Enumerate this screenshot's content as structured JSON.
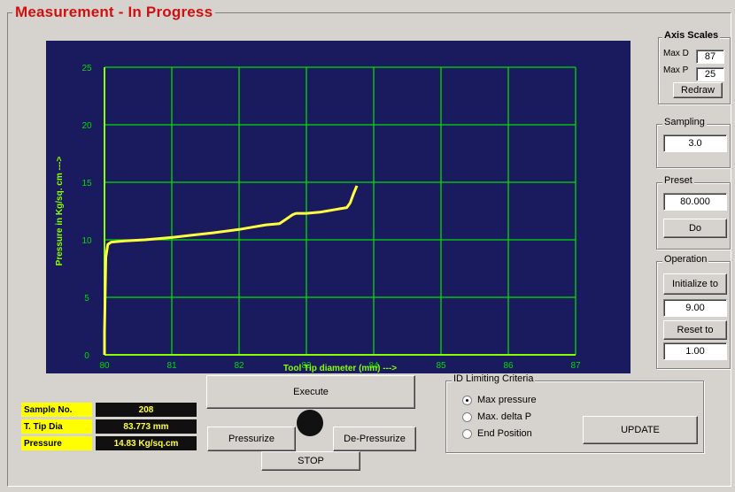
{
  "window": {
    "title": "Measurement - In Progress"
  },
  "axis_scales": {
    "title": "Axis Scales",
    "max_d_label": "Max D",
    "max_d_value": "87",
    "max_p_label": "Max P",
    "max_p_value": "25",
    "redraw_label": "Redraw"
  },
  "sampling": {
    "title": "Sampling",
    "value": "3.0"
  },
  "preset": {
    "title": "Preset",
    "value": "80.000",
    "do_label": "Do"
  },
  "operation": {
    "title": "Operation",
    "initialize_label": "Initialize to",
    "initialize_value": "9.00",
    "reset_label": "Reset to",
    "reset_value": "1.00"
  },
  "controls": {
    "execute_label": "Execute",
    "pressurize_label": "Pressurize",
    "depressurize_label": "De-Pressurize",
    "stop_label": "STOP",
    "update_label": "UPDATE"
  },
  "info": {
    "sample_label": "Sample No.",
    "sample_value": "208",
    "tip_label": "T. Tip Dia",
    "tip_value": "83.773 mm",
    "pressure_label": "Pressure",
    "pressure_value": "14.83 Kg/sq.cm"
  },
  "id_limiting": {
    "title": "ID Limiting Criteria",
    "options": [
      "Max pressure",
      "Max. delta P",
      "End Position"
    ],
    "selected_index": 0
  },
  "colors": {
    "plot_bg": "#1a1a5e",
    "grid": "#00dd00",
    "curve": "#ffff40",
    "title_red": "#d01010"
  },
  "chart_data": {
    "type": "line",
    "xlabel": "Tool Tip diameter (mm) --->",
    "ylabel": "Pressure in Kg/sq. cm --->",
    "xlim": [
      80,
      87
    ],
    "ylim": [
      0,
      25
    ],
    "x_ticks": [
      "80",
      "81",
      "82",
      "83",
      "84",
      "85",
      "86",
      "87"
    ],
    "y_ticks": [
      "0",
      "5",
      "10",
      "15",
      "20",
      "25"
    ],
    "grid": true,
    "series": [
      {
        "x": [
          80.0,
          80.0,
          80.02,
          80.05,
          80.1,
          80.3,
          80.6,
          81.0,
          81.3,
          81.6,
          82.0,
          82.2,
          82.4,
          82.6,
          82.7,
          82.8,
          82.85,
          83.0,
          83.2,
          83.3,
          83.4,
          83.5,
          83.6,
          83.65,
          83.7,
          83.75
        ],
        "y": [
          0.0,
          2.0,
          8.5,
          9.6,
          9.8,
          9.9,
          10.0,
          10.2,
          10.4,
          10.6,
          10.9,
          11.1,
          11.3,
          11.4,
          11.8,
          12.2,
          12.3,
          12.3,
          12.4,
          12.5,
          12.6,
          12.7,
          12.8,
          13.2,
          14.0,
          14.7
        ]
      }
    ]
  }
}
